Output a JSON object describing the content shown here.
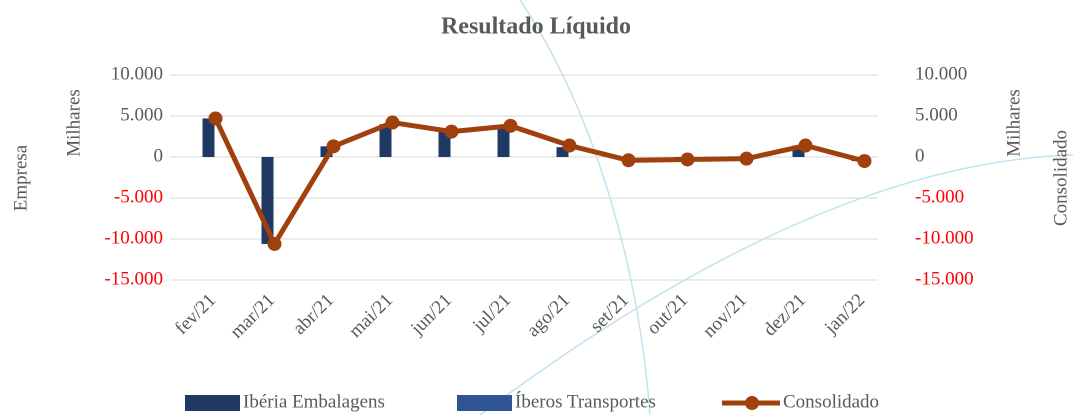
{
  "chart_data": {
    "type": "bar_line",
    "title": "Resultado Líquido",
    "y_label": "Empresa",
    "y_unit_label": "Milhares",
    "y2_label": "Consolidado",
    "y2_unit_label": "Milhares",
    "categories": [
      "fev/21",
      "mar/21",
      "abr/21",
      "mai/21",
      "jun/21",
      "jul/21",
      "ago/21",
      "set/21",
      "out/21",
      "nov/21",
      "dez/21",
      "jan/22"
    ],
    "series": [
      {
        "name": "Ibéria Embalagens",
        "type": "bar",
        "color": "#1f3864",
        "values": [
          4700,
          -10600,
          1300,
          4000,
          3200,
          3600,
          1200,
          -300,
          -200,
          -200,
          1400,
          -500
        ]
      },
      {
        "name": "Íberos Transportes",
        "type": "bar",
        "color": "#2f5597",
        "values": [
          0,
          0,
          0,
          0,
          0,
          0,
          0,
          0,
          0,
          0,
          0,
          0
        ]
      },
      {
        "name": "Consolidado",
        "type": "line",
        "axis": "y2",
        "color": "#a0410d",
        "values": [
          4700,
          -10600,
          1300,
          4200,
          3100,
          3800,
          1400,
          -400,
          -300,
          -200,
          1400,
          -500
        ]
      }
    ],
    "ylim": [
      -15000,
      10000
    ],
    "yticks": [
      {
        "value": -15000,
        "label": "-15.000"
      },
      {
        "value": -10000,
        "label": "-10.000"
      },
      {
        "value": -5000,
        "label": "-5.000"
      },
      0,
      {
        "value": 5000,
        "label": "5.000"
      },
      {
        "value": 10000,
        "label": "10.000"
      }
    ],
    "y2lim": [
      -15000,
      10000
    ],
    "y2ticks": [
      {
        "value": -15000,
        "label": "-15.000"
      },
      {
        "value": -10000,
        "label": "-10.000"
      },
      {
        "value": -5000,
        "label": "-5.000"
      },
      0,
      {
        "value": 5000,
        "label": "5.000"
      },
      {
        "value": 10000,
        "label": "10.000"
      }
    ],
    "negative_tick_color": "#ff0000",
    "grid": true,
    "legend": "bottom"
  }
}
